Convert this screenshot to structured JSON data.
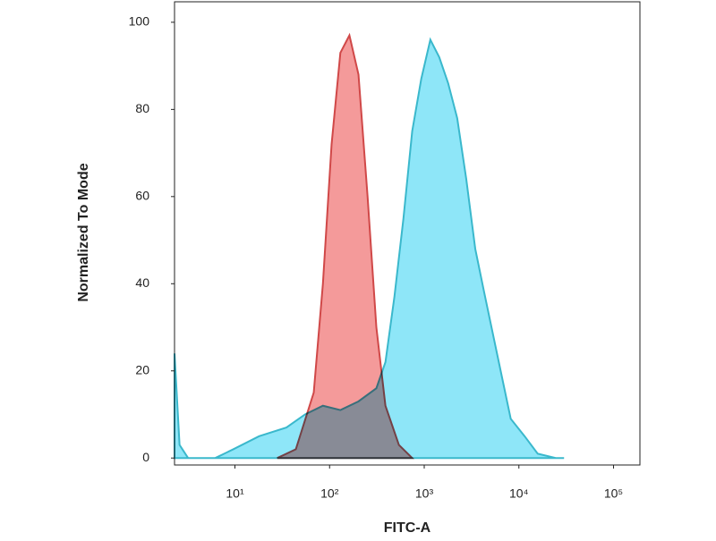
{
  "chart_data": {
    "type": "area",
    "x_label": "FITC-A",
    "y_label": "Normalized To Mode",
    "xlim": [
      2.3,
      190000
    ],
    "xscale": "log",
    "xticks": [
      {
        "value": 10,
        "label": "10¹"
      },
      {
        "value": 100,
        "label": "10²"
      },
      {
        "value": 1000,
        "label": "10³"
      },
      {
        "value": 10000,
        "label": "10⁴"
      },
      {
        "value": 100000,
        "label": "10⁵"
      }
    ],
    "ylim": [
      -1.6,
      104.7
    ],
    "yticks": [
      0,
      20,
      40,
      60,
      80,
      100
    ],
    "grid": false,
    "series": [
      {
        "color": "#8ee6f8",
        "edge": "#3ab8cc",
        "x": [
          2.3,
          2.6,
          3.2,
          6.2,
          9.6,
          18,
          35,
          55,
          85,
          130,
          202,
          312,
          389,
          484,
          603,
          746,
          930,
          1160,
          1440,
          1790,
          2230,
          2780,
          3460,
          4300,
          5870,
          8200,
          11500,
          15800,
          24500,
          30000
        ],
        "values": [
          24,
          3,
          0,
          0,
          2,
          5,
          7,
          10,
          12,
          11,
          13,
          16,
          22,
          37,
          55,
          75,
          87,
          96,
          92,
          86,
          78,
          64,
          48,
          38,
          24,
          9,
          5,
          1,
          0,
          0
        ]
      },
      {
        "color": "#f49a9a",
        "edge": "#d04848",
        "x": [
          28,
          44,
          68,
          85,
          105,
          130,
          162,
          202,
          252,
          312,
          389,
          540,
          746
        ],
        "values": [
          0,
          2,
          15,
          40,
          72,
          93,
          97,
          88,
          60,
          30,
          12,
          3,
          0
        ]
      }
    ]
  }
}
